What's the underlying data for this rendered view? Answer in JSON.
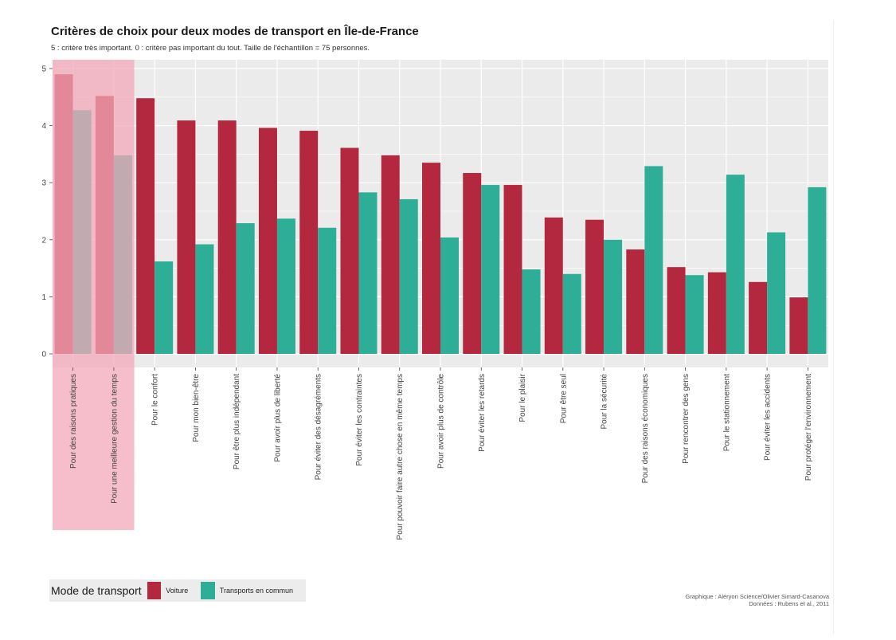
{
  "chart_data": {
    "type": "bar",
    "title": "Critères de choix pour deux modes de transport en Île-de-France",
    "subtitle": "5 : critère très important. 0 : critère pas important du tout. Taille de l'échantillon = 75 personnes.",
    "xlabel": "",
    "ylabel": "",
    "ylim": [
      0,
      5
    ],
    "yticks": [
      "0",
      "1",
      "2",
      "3",
      "4",
      "5"
    ],
    "grid": true,
    "categories": [
      "Pour des raisons pratiques",
      "Pour une meilleure gestion du temps",
      "Pour le confort",
      "Pour mon bien-être",
      "Pour être plus indépendant",
      "Pour avoir plus de liberté",
      "Pour éviter des désagréments",
      "Pour éviter les contraintes",
      "Pour pouvoir faire autre chose en même temps",
      "Pour avoir plus de contrôle",
      "Pour éviter les retards",
      "Pour le plaisir",
      "Pour être seul",
      "Pour la sécurité",
      "Pour des raisons économiques",
      "Pour rencontrer des gens",
      "Pour le stationnement",
      "Pour éviter les accidents",
      "Pour protéger l'environnement"
    ],
    "highlighted_categories": [
      0,
      1
    ],
    "series": [
      {
        "name": "Voiture",
        "color": "#b3283f",
        "values": [
          4.9,
          4.52,
          4.48,
          4.09,
          4.09,
          3.96,
          3.91,
          3.61,
          3.48,
          3.35,
          3.17,
          2.96,
          2.39,
          2.35,
          1.83,
          1.52,
          1.43,
          1.26,
          0.99
        ]
      },
      {
        "name": "Transports en commun",
        "color": "#2eae97",
        "values": [
          4.27,
          3.48,
          1.62,
          1.92,
          2.29,
          2.37,
          2.21,
          2.83,
          2.71,
          2.04,
          2.96,
          1.48,
          1.4,
          2.0,
          3.29,
          1.38,
          3.14,
          2.13,
          2.92
        ]
      }
    ],
    "legend": {
      "title": "Mode de transport",
      "position": "bottom-left"
    },
    "caption": [
      "Graphique : Aléryon Science/Olivier Simard-Casanova",
      "Données : Rubens et al., 2011"
    ]
  },
  "colors": {
    "panel_background": "#ebebeb",
    "grid": "#ffffff",
    "highlight": "#f3a8b8"
  }
}
